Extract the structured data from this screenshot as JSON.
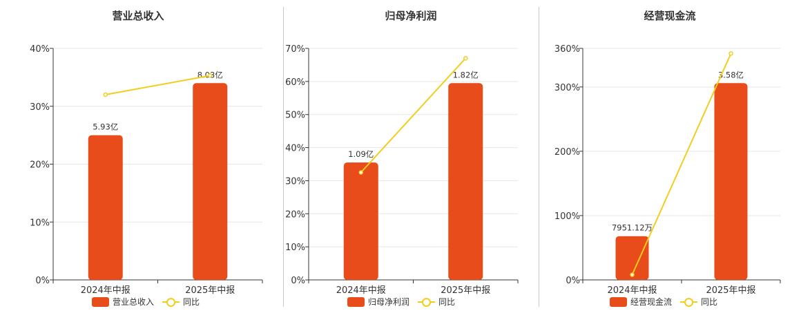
{
  "colors": {
    "bar": "#e84c1b",
    "line": "#f2cd1e",
    "axis": "#333333",
    "grid": "#e6e6e6"
  },
  "chart_data": [
    {
      "type": "bar",
      "title": "营业总收入",
      "categories": [
        "2024年中报",
        "2025年中报"
      ],
      "ylim": [
        0,
        40
      ],
      "yticks": [
        "0%",
        "10%",
        "20%",
        "30%",
        "40%"
      ],
      "series": [
        {
          "name": "营业总收入",
          "type": "bar",
          "values": [
            25,
            34
          ],
          "labels": [
            "5.93亿",
            "8.03亿"
          ]
        },
        {
          "name": "同比",
          "type": "line",
          "values": [
            32,
            35.3
          ]
        }
      ]
    },
    {
      "type": "bar",
      "title": "归母净利润",
      "categories": [
        "2024年中报",
        "2025年中报"
      ],
      "ylim": [
        0,
        70
      ],
      "yticks": [
        "0%",
        "10%",
        "20%",
        "30%",
        "40%",
        "50%",
        "60%",
        "70%"
      ],
      "series": [
        {
          "name": "归母净利润",
          "type": "bar",
          "values": [
            35.5,
            59.5
          ],
          "labels": [
            "1.09亿",
            "1.82亿"
          ]
        },
        {
          "name": "同比",
          "type": "line",
          "values": [
            32.5,
            67
          ]
        }
      ]
    },
    {
      "type": "bar",
      "title": "经营现金流",
      "categories": [
        "2024年中报",
        "2025年中报"
      ],
      "ylim": [
        0,
        360
      ],
      "yticks": [
        "0%",
        "100%",
        "200%",
        "300%",
        "360%"
      ],
      "ytickvals": [
        0,
        100,
        200,
        300,
        360
      ],
      "series": [
        {
          "name": "经营现金流",
          "type": "bar",
          "values": [
            68,
            306
          ],
          "labels": [
            "7951.12万",
            "3.58亿"
          ]
        },
        {
          "name": "同比",
          "type": "line",
          "values": [
            8,
            352
          ]
        }
      ]
    }
  ]
}
